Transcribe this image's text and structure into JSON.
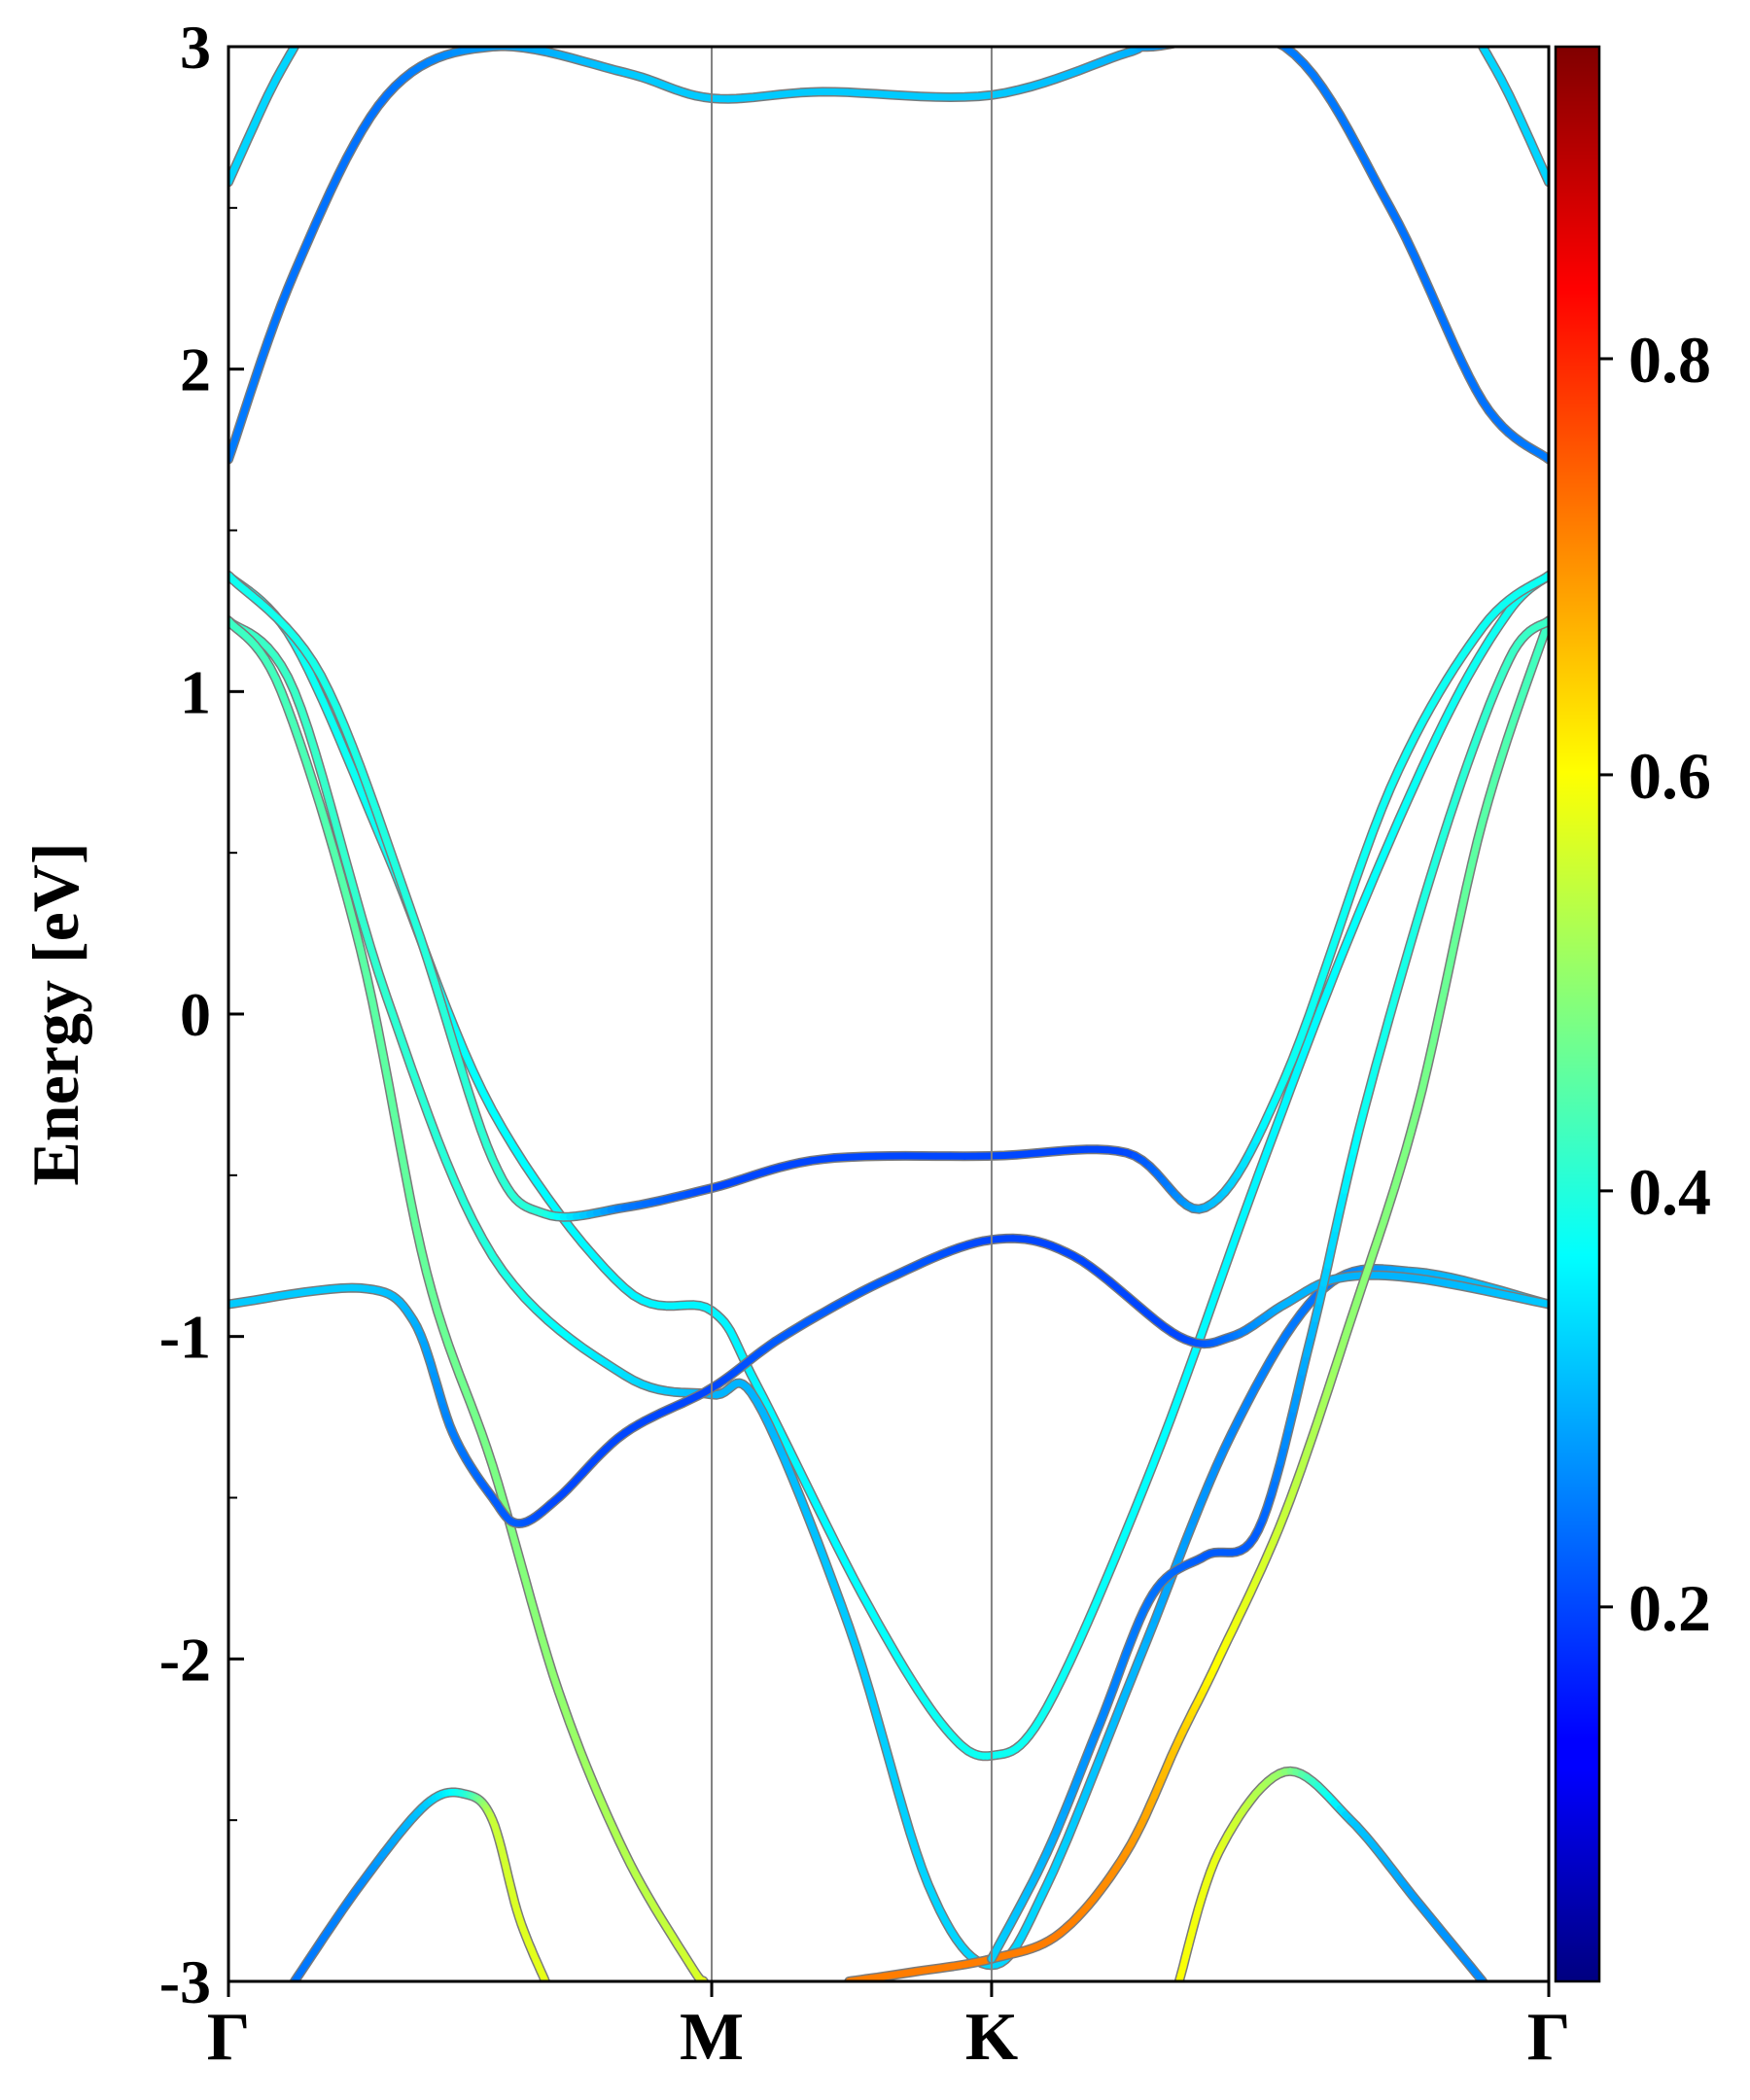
{
  "chart_data": {
    "type": "line",
    "title": "",
    "xlabel": "",
    "ylabel": "Energy [eV]",
    "ylim": [
      -3,
      3
    ],
    "xlim": [
      0,
      1
    ],
    "yticks": [
      -3,
      -2,
      -1,
      0,
      1,
      2,
      3
    ],
    "ytick_labels": [
      "-3",
      "-2",
      "-1",
      "0",
      "1",
      "2",
      "3"
    ],
    "xticks": [
      0,
      0.366,
      0.578,
      1
    ],
    "xtick_labels": [
      "Γ",
      "M",
      "K",
      "Γ"
    ],
    "grid": false,
    "colorbar": {
      "colormap": "jet",
      "range": [
        0.02,
        0.95
      ],
      "ticks": [
        0.2,
        0.4,
        0.6,
        0.8
      ],
      "tick_labels": [
        "0.2",
        "0.4",
        "0.6",
        "0.8"
      ]
    },
    "series": [
      {
        "values": [
          [
            0,
            1.72
          ],
          [
            0.05,
            2.3
          ],
          [
            0.12,
            2.85
          ],
          [
            0.2,
            3.0
          ],
          [
            0.3,
            2.92
          ],
          [
            0.366,
            2.84
          ],
          [
            0.45,
            2.86
          ],
          [
            0.578,
            2.85
          ],
          [
            0.68,
            2.98
          ],
          [
            0.7,
            3.0
          ],
          [
            0.8,
            3.0
          ],
          [
            0.88,
            2.5
          ],
          [
            0.95,
            1.9
          ],
          [
            1,
            1.72
          ]
        ],
        "weights": [
          0.25,
          0.24,
          0.24,
          0.28,
          0.32,
          0.32,
          0.32,
          0.32,
          0.3,
          0.28,
          0.25,
          0.24,
          0.24,
          0.25
        ]
      },
      {
        "values": [
          [
            0,
            2.58
          ],
          [
            0.03,
            2.85
          ],
          [
            0.05,
            3.0
          ]
        ],
        "weights": [
          0.33,
          0.33,
          0.33
        ]
      },
      {
        "values": [
          [
            0.95,
            3.0
          ],
          [
            0.97,
            2.85
          ],
          [
            1,
            2.58
          ]
        ],
        "weights": [
          0.33,
          0.33,
          0.33
        ]
      },
      {
        "values": [
          [
            0,
            1.36
          ],
          [
            0.05,
            1.15
          ],
          [
            0.12,
            0.5
          ],
          [
            0.2,
            -0.3
          ],
          [
            0.3,
            -0.85
          ],
          [
            0.366,
            -0.92
          ],
          [
            0.4,
            -1.15
          ],
          [
            0.48,
            -1.8
          ],
          [
            0.54,
            -2.2
          ],
          [
            0.578,
            -2.3
          ],
          [
            0.62,
            -2.15
          ],
          [
            0.7,
            -1.4
          ],
          [
            0.78,
            -0.5
          ],
          [
            0.85,
            0.25
          ],
          [
            0.92,
            0.9
          ],
          [
            0.97,
            1.25
          ],
          [
            1,
            1.36
          ]
        ],
        "weights": [
          0.38,
          0.38,
          0.38,
          0.37,
          0.36,
          0.36,
          0.36,
          0.37,
          0.38,
          0.38,
          0.38,
          0.37,
          0.36,
          0.37,
          0.38,
          0.38,
          0.38
        ]
      },
      {
        "values": [
          [
            0,
            1.36
          ],
          [
            0.07,
            1.05
          ],
          [
            0.14,
            0.3
          ],
          [
            0.2,
            -0.45
          ],
          [
            0.24,
            -0.62
          ],
          [
            0.3,
            -0.6
          ],
          [
            0.366,
            -0.54
          ],
          [
            0.45,
            -0.45
          ],
          [
            0.578,
            -0.44
          ],
          [
            0.68,
            -0.43
          ],
          [
            0.74,
            -0.6
          ],
          [
            0.8,
            -0.2
          ],
          [
            0.88,
            0.7
          ],
          [
            0.95,
            1.2
          ],
          [
            1,
            1.36
          ]
        ],
        "weights": [
          0.38,
          0.39,
          0.4,
          0.41,
          0.4,
          0.25,
          0.2,
          0.2,
          0.2,
          0.2,
          0.3,
          0.38,
          0.38,
          0.38,
          0.38
        ]
      },
      {
        "values": [
          [
            0,
            1.22
          ],
          [
            0.05,
            1.0
          ],
          [
            0.12,
            0.05
          ],
          [
            0.2,
            -0.75
          ],
          [
            0.3,
            -1.12
          ],
          [
            0.366,
            -1.18
          ],
          [
            0.4,
            -1.2
          ],
          [
            0.47,
            -1.9
          ],
          [
            0.53,
            -2.7
          ],
          [
            0.578,
            -2.95
          ],
          [
            0.62,
            -2.7
          ],
          [
            0.69,
            -2.0
          ],
          [
            0.76,
            -1.3
          ],
          [
            0.83,
            -0.85
          ],
          [
            0.9,
            -0.8
          ],
          [
            1,
            -0.9
          ]
        ],
        "weights": [
          0.42,
          0.42,
          0.41,
          0.4,
          0.34,
          0.3,
          0.3,
          0.32,
          0.33,
          0.33,
          0.33,
          0.3,
          0.26,
          0.24,
          0.3,
          0.32
        ]
      },
      {
        "values": [
          [
            0,
            1.22
          ],
          [
            0.04,
            1.0
          ],
          [
            0.1,
            0.2
          ],
          [
            0.15,
            -0.8
          ],
          [
            0.2,
            -1.4
          ],
          [
            0.25,
            -2.1
          ],
          [
            0.3,
            -2.6
          ],
          [
            0.35,
            -2.95
          ],
          [
            0.36,
            -3.0
          ]
        ],
        "weights": [
          0.42,
          0.43,
          0.45,
          0.46,
          0.48,
          0.5,
          0.53,
          0.56,
          0.58
        ]
      },
      {
        "values": [
          [
            0,
            -0.9
          ],
          [
            0.1,
            -0.85
          ],
          [
            0.14,
            -0.95
          ],
          [
            0.17,
            -1.3
          ],
          [
            0.2,
            -1.5
          ],
          [
            0.22,
            -1.58
          ],
          [
            0.25,
            -1.5
          ],
          [
            0.3,
            -1.3
          ],
          [
            0.366,
            -1.16
          ],
          [
            0.42,
            -1.0
          ],
          [
            0.5,
            -0.82
          ],
          [
            0.578,
            -0.7
          ],
          [
            0.64,
            -0.75
          ],
          [
            0.72,
            -1.0
          ],
          [
            0.76,
            -1.0
          ],
          [
            0.8,
            -0.9
          ],
          [
            0.84,
            -0.82
          ],
          [
            0.9,
            -0.82
          ],
          [
            1,
            -0.9
          ]
        ],
        "weights": [
          0.32,
          0.32,
          0.3,
          0.25,
          0.22,
          0.22,
          0.2,
          0.2,
          0.2,
          0.22,
          0.22,
          0.2,
          0.2,
          0.2,
          0.24,
          0.3,
          0.3,
          0.3,
          0.32
        ]
      },
      {
        "values": [
          [
            0.47,
            -3.0
          ],
          [
            0.52,
            -2.97
          ],
          [
            0.578,
            -2.93
          ],
          [
            0.63,
            -2.85
          ],
          [
            0.68,
            -2.6
          ],
          [
            0.72,
            -2.25
          ],
          [
            0.75,
            -2.0
          ],
          [
            0.8,
            -1.55
          ],
          [
            0.85,
            -0.95
          ],
          [
            0.9,
            -0.3
          ],
          [
            0.95,
            0.6
          ],
          [
            1,
            1.22
          ]
        ],
        "weights": [
          0.72,
          0.72,
          0.72,
          0.72,
          0.7,
          0.65,
          0.6,
          0.55,
          0.5,
          0.48,
          0.45,
          0.42
        ]
      },
      {
        "values": [
          [
            0.578,
            -2.93
          ],
          [
            0.62,
            -2.6
          ],
          [
            0.66,
            -2.2
          ],
          [
            0.7,
            -1.8
          ],
          [
            0.74,
            -1.68
          ],
          [
            0.78,
            -1.6
          ],
          [
            0.82,
            -1.0
          ],
          [
            0.86,
            -0.3
          ],
          [
            0.92,
            0.55
          ],
          [
            0.97,
            1.1
          ],
          [
            1,
            1.22
          ]
        ],
        "weights": [
          0.33,
          0.3,
          0.26,
          0.24,
          0.22,
          0.22,
          0.3,
          0.38,
          0.4,
          0.42,
          0.42
        ]
      },
      {
        "values": [
          [
            0.05,
            -3.0
          ],
          [
            0.1,
            -2.7
          ],
          [
            0.15,
            -2.45
          ],
          [
            0.18,
            -2.42
          ],
          [
            0.2,
            -2.5
          ],
          [
            0.22,
            -2.8
          ],
          [
            0.24,
            -3.0
          ]
        ],
        "weights": [
          0.24,
          0.26,
          0.32,
          0.4,
          0.55,
          0.57,
          0.58
        ]
      },
      {
        "values": [
          [
            0.72,
            -3.0
          ],
          [
            0.75,
            -2.6
          ],
          [
            0.8,
            -2.35
          ],
          [
            0.85,
            -2.5
          ],
          [
            0.9,
            -2.75
          ],
          [
            0.95,
            -3.0
          ]
        ],
        "weights": [
          0.6,
          0.58,
          0.5,
          0.32,
          0.28,
          0.26
        ]
      }
    ]
  }
}
